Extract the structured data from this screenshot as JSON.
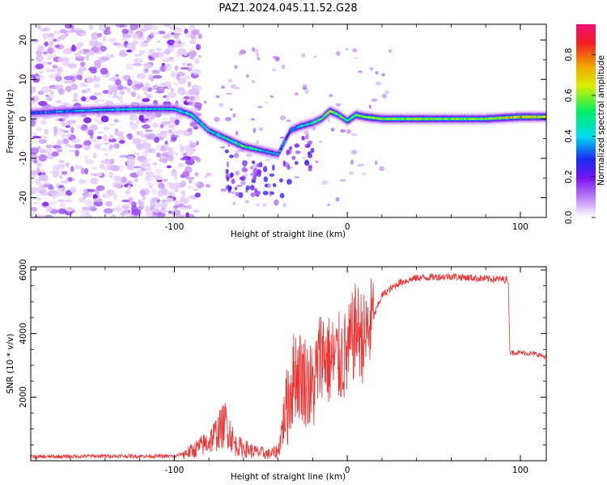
{
  "title": "PAZ1.2024.045.11.52.G28",
  "chart_data": [
    {
      "type": "heatmap",
      "xlabel": "Height of straight line (km)",
      "ylabel": "Frequency (Hz)",
      "xlim": [
        -183,
        115
      ],
      "ylim": [
        -25,
        24
      ],
      "xticks": [
        -100,
        0,
        100
      ],
      "yticks": [
        -20,
        -10,
        0,
        10,
        20
      ],
      "colorbar": {
        "label": "Normalized spectral amplitude",
        "range": [
          0.0,
          0.95
        ],
        "ticks": [
          0.0,
          0.2,
          0.4,
          0.6,
          0.8
        ],
        "tick_labels": [
          "0.0",
          "0.2",
          "0.4",
          "0.6",
          "0.8"
        ],
        "colormap": [
          "#ffffff",
          "#c99bf6",
          "#7a16f0",
          "#1a2af0",
          "#00dcf0",
          "#00f060",
          "#d8f000",
          "#f0a800",
          "#f02020",
          "#f0107a"
        ]
      },
      "ridge": {
        "x": [
          -183,
          -160,
          -140,
          -120,
          -100,
          -90,
          -80,
          -70,
          -60,
          -50,
          -40,
          -33,
          -28,
          -20,
          -15,
          -10,
          -5,
          0,
          5,
          10,
          20,
          40,
          60,
          80,
          100,
          115
        ],
        "y": [
          1.5,
          2,
          2.3,
          2.5,
          2.5,
          1,
          -3,
          -5,
          -7,
          -8,
          -9,
          -3,
          -2,
          -1,
          0,
          2,
          1,
          -0.5,
          1,
          0.5,
          0,
          0,
          0,
          0,
          0.5,
          0.5
        ],
        "amplitude": [
          0.35,
          0.4,
          0.45,
          0.45,
          0.45,
          0.5,
          0.45,
          0.5,
          0.55,
          0.45,
          0.4,
          0.35,
          0.45,
          0.5,
          0.55,
          0.65,
          0.55,
          0.55,
          0.6,
          0.62,
          0.62,
          0.62,
          0.62,
          0.62,
          0.75,
          0.7
        ]
      },
      "noise_region": {
        "x_range": [
          -183,
          -95
        ],
        "y_range": [
          -25,
          24
        ]
      }
    },
    {
      "type": "line",
      "xlabel": "Height of straight line (km)",
      "ylabel": "SNR (10 * v/v)",
      "xlim": [
        -183,
        115
      ],
      "ylim": [
        0,
        6100
      ],
      "xticks": [
        -100,
        0,
        100
      ],
      "yticks": [
        2000,
        4000,
        6000
      ],
      "color": "#ee3333",
      "series": [
        {
          "x": [
            -183,
            -140,
            -100,
            -90,
            -80,
            -75,
            -70,
            -65,
            -60,
            -55,
            -50,
            -45,
            -40,
            -35,
            -30,
            -25,
            -20,
            -15,
            -10,
            -5,
            0,
            5,
            10,
            15,
            20,
            30,
            40,
            60,
            80,
            93,
            94,
            100,
            110,
            115
          ],
          "y": [
            120,
            150,
            140,
            300,
            600,
            900,
            1200,
            500,
            400,
            300,
            250,
            200,
            300,
            1800,
            2800,
            2600,
            2200,
            3500,
            3100,
            3200,
            3300,
            4200,
            3800,
            4500,
            5200,
            5600,
            5750,
            5800,
            5720,
            5700,
            3400,
            3400,
            3350,
            3250
          ]
        }
      ]
    }
  ]
}
